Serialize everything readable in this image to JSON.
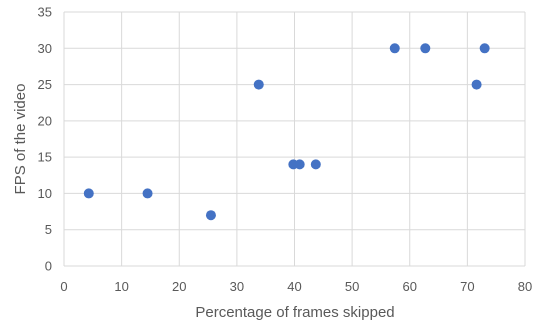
{
  "chart_data": {
    "type": "scatter",
    "title": "",
    "xlabel": "Percentage of frames skipped",
    "ylabel": "FPS of the video",
    "xlim": [
      0,
      80
    ],
    "ylim": [
      0,
      35
    ],
    "x_ticks": [
      0,
      10,
      20,
      30,
      40,
      50,
      60,
      70,
      80
    ],
    "y_ticks": [
      0,
      5,
      10,
      15,
      20,
      25,
      30,
      35
    ],
    "grid": true,
    "legend": "none",
    "series": [
      {
        "color": "#4472c4",
        "points": [
          {
            "x": 4.3,
            "y": 10
          },
          {
            "x": 14.5,
            "y": 10
          },
          {
            "x": 25.5,
            "y": 7
          },
          {
            "x": 33.8,
            "y": 25
          },
          {
            "x": 39.8,
            "y": 14
          },
          {
            "x": 40.9,
            "y": 14
          },
          {
            "x": 43.7,
            "y": 14
          },
          {
            "x": 57.4,
            "y": 30
          },
          {
            "x": 62.7,
            "y": 30
          },
          {
            "x": 71.6,
            "y": 25
          },
          {
            "x": 73.0,
            "y": 30
          }
        ]
      }
    ]
  }
}
